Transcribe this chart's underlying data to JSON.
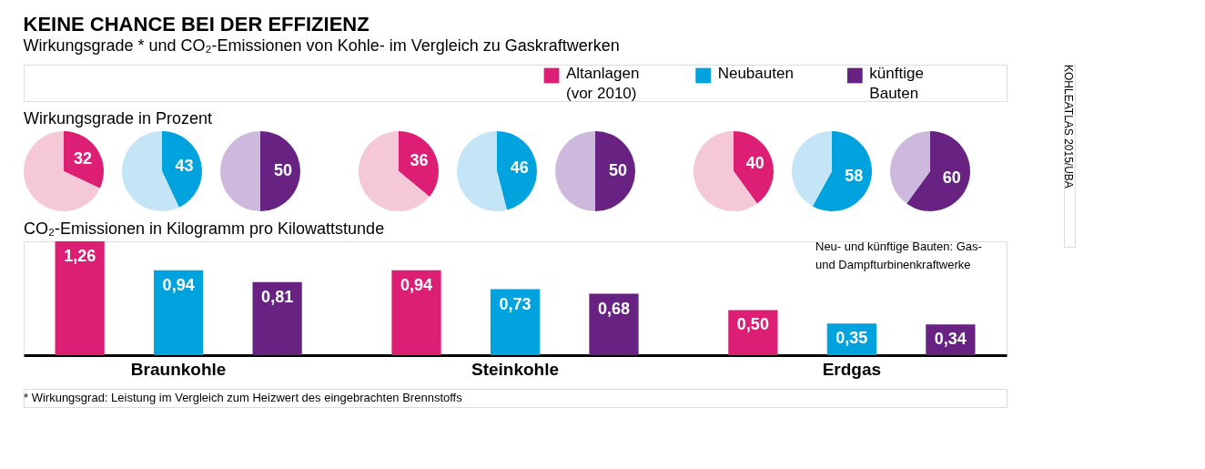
{
  "chart_data": [
    {
      "type": "pie",
      "title": "KEINE CHANCE BEI DER EFFIZIENZ",
      "subtitle": "Wirkungsgrade * und CO₂-Emissionen von Kohle- im Vergleich zu Gaskraftwerken",
      "annotations": [
        "Wirkungsgrade in Prozent"
      ],
      "categories": [
        null,
        null
      ],
      "values": [
        32,
        68
      ],
      "colors": [
        "#dc1f74",
        "#f5c8d8"
      ],
      "value_labels": [
        "32",
        null
      ]
    },
    {
      "type": "pie",
      "categories": [
        null,
        null
      ],
      "values": [
        43,
        57
      ],
      "colors": [
        "#00a3dd",
        "#c4e5f6"
      ],
      "value_labels": [
        "43",
        null
      ]
    },
    {
      "type": "pie",
      "categories": [
        null,
        null
      ],
      "values": [
        50,
        50
      ],
      "colors": [
        "#682382",
        "#cdb9dd"
      ],
      "value_labels": [
        "50",
        null
      ]
    },
    {
      "type": "pie",
      "categories": [
        null,
        null
      ],
      "values": [
        36,
        64
      ],
      "colors": [
        "#dc1f74",
        "#f5c8d8"
      ],
      "value_labels": [
        "36",
        null
      ]
    },
    {
      "type": "pie",
      "categories": [
        null,
        null
      ],
      "values": [
        46,
        54
      ],
      "colors": [
        "#00a3dd",
        "#c4e5f6"
      ],
      "value_labels": [
        "46",
        null
      ]
    },
    {
      "type": "pie",
      "categories": [
        null,
        null
      ],
      "values": [
        50,
        50
      ],
      "colors": [
        "#682382",
        "#cdb9dd"
      ],
      "value_labels": [
        "50",
        null
      ]
    },
    {
      "type": "pie",
      "categories": [
        null,
        null
      ],
      "values": [
        40,
        60
      ],
      "colors": [
        "#dc1f74",
        "#f5c8d8"
      ],
      "value_labels": [
        "40",
        null
      ]
    },
    {
      "type": "pie",
      "categories": [
        null,
        null
      ],
      "values": [
        58,
        42
      ],
      "colors": [
        "#00a3dd",
        "#c4e5f6"
      ],
      "value_labels": [
        "58",
        null
      ]
    },
    {
      "type": "pie",
      "categories": [
        null,
        null
      ],
      "values": [
        60,
        40
      ],
      "colors": [
        "#682382",
        "#cdb9dd"
      ],
      "value_labels": [
        "60",
        null
      ]
    },
    {
      "type": "bar",
      "title": "CO₂-Emissionen in Kilogramm pro Kilowattstunde",
      "categories": [
        "Braunkohle",
        "Steinkohle",
        "Erdgas"
      ],
      "legend": "top right",
      "annotations": [
        "Neu- und künftige Bauten: Gas- und Dampfturbinenkraftwerke",
        "* Wirkungsgrad: Leistung im Vergleich zum Heizwert des eingebrachten Brennstoffs",
        "KOHLEATLAS 2015/UBA"
      ],
      "series": [
        {
          "name": "Altanlagen (vor 2010)",
          "color": "#dc1f74",
          "values": [
            1.26,
            0.94,
            0.5
          ],
          "value_labels": [
            "1,26",
            "0,94",
            "0,50"
          ]
        },
        {
          "name": "Neubauten",
          "color": "#00a3dd",
          "values": [
            0.94,
            0.73,
            0.35
          ],
          "value_labels": [
            "0,94",
            "0,73",
            "0,35"
          ]
        },
        {
          "name": "künftige Bauten",
          "color": "#682382",
          "values": [
            0.81,
            0.68,
            0.34
          ],
          "value_labels": [
            "0,81",
            "0,68",
            "0,34"
          ]
        }
      ]
    }
  ]
}
